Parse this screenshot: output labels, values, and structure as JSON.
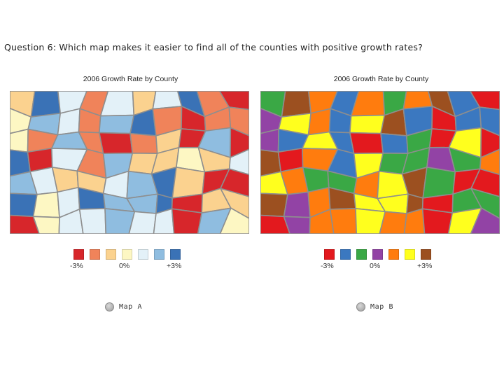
{
  "question": {
    "text": "Question 6: Which map makes it easier to find all of the counties with positive growth rates?"
  },
  "maps": [
    {
      "title": "2006 Growth Rate by County",
      "palette": [
        "#d7262b",
        "#f0835a",
        "#fbd28f",
        "#fdf7c3",
        "#e3f1f8",
        "#8fbde0",
        "#3a72b6"
      ],
      "legend": {
        "min": "-3%",
        "mid": "0%",
        "max": "+3%"
      },
      "choice": "Map A"
    },
    {
      "title": "2006 Growth Rate by County",
      "palette": [
        "#e3191e",
        "#3b78c0",
        "#3aa845",
        "#9243a5",
        "#ff7c0e",
        "#ffff1e",
        "#9c5020"
      ],
      "legend": {
        "min": "-3%",
        "mid": "0%",
        "max": "+3%"
      },
      "choice": "Map B"
    }
  ]
}
